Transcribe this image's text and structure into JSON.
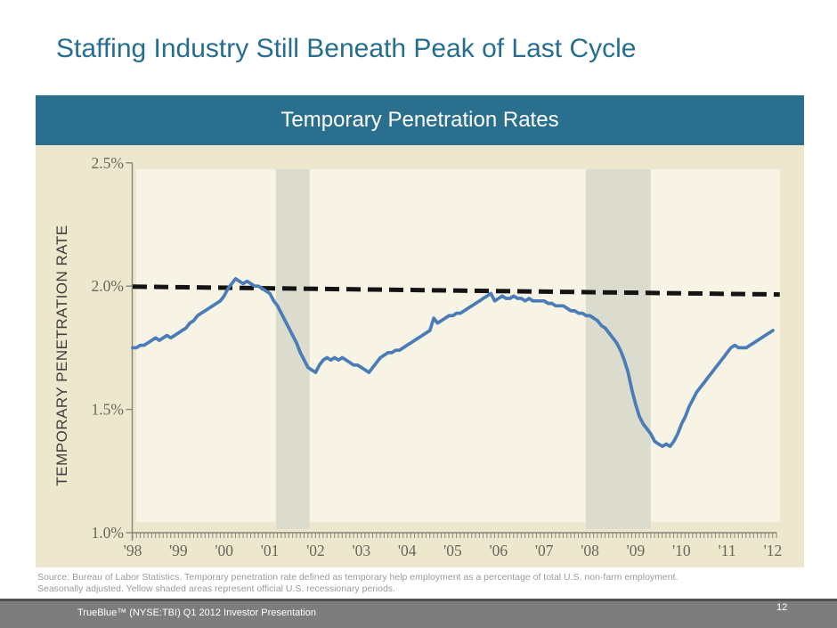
{
  "slide": {
    "title": "Staffing Industry Still Beneath Peak of Last Cycle",
    "page_number": "12"
  },
  "footer": {
    "label": "TrueBlue™ (NYSE:TBI) Q1 2012 Investor Presentation"
  },
  "source_note": {
    "line1": "Source: Bureau of Labor Statistics. Temporary penetration rate defined as temporary help employment as a percentage of total  U.S. non-farm employment.",
    "line2": "Seasonally adjusted. Yellow shaded areas represent official U.S. recessionary periods."
  },
  "colors": {
    "title_teal": "#256e90",
    "header_bar": "#2a6f8e",
    "panel_cream": "#ece7cd",
    "plot_cream": "#f7f4e5",
    "recession_band": "#dcdcce",
    "axis_gray": "#85857a",
    "tick_label": "#67675c",
    "line_blue": "#4a7cb8",
    "dashed_black": "#141414",
    "footer_gray": "#7d7d7d"
  },
  "chart_data": {
    "type": "line",
    "title": "Temporary Penetration Rates",
    "ylabel": "TEMPORARY PENETRATION RATE",
    "xlabel": "",
    "grid": false,
    "legend": false,
    "ylim": [
      1.0,
      2.5
    ],
    "xlim": [
      1998.0,
      2012.17
    ],
    "y_ticks": [
      1.0,
      1.5,
      2.0,
      2.5
    ],
    "y_tick_labels": [
      "1.0%",
      "1.5%",
      "2.0%",
      "2.5%"
    ],
    "x_ticks": [
      1998,
      1999,
      2000,
      2001,
      2002,
      2003,
      2004,
      2005,
      2006,
      2007,
      2008,
      2009,
      2010,
      2011,
      2012
    ],
    "x_tick_labels": [
      "'98",
      "'99",
      "'00",
      "'01",
      "'02",
      "'03",
      "'04",
      "'05",
      "'06",
      "'07",
      "'08",
      "'09",
      "'10",
      "'11",
      "'12"
    ],
    "minor_tick_interval_years": 0.0833,
    "recession_bands": [
      {
        "from": 2001.13,
        "to": 2001.87
      },
      {
        "from": 2007.91,
        "to": 2009.33
      }
    ],
    "peak_reference_line": {
      "style": "dashed",
      "from": {
        "x": 1998.0,
        "y": 1.998
      },
      "to": {
        "x": 2012.15,
        "y": 1.966
      }
    },
    "series": [
      {
        "name": "Temporary penetration rate (% of U.S. non-farm employment)",
        "frequency": "monthly",
        "start": "1998-01",
        "end": "2012-01",
        "values": [
          1.75,
          1.75,
          1.76,
          1.76,
          1.77,
          1.78,
          1.79,
          1.78,
          1.79,
          1.8,
          1.79,
          1.8,
          1.81,
          1.82,
          1.83,
          1.85,
          1.86,
          1.88,
          1.89,
          1.9,
          1.91,
          1.92,
          1.93,
          1.94,
          1.96,
          1.99,
          2.01,
          2.03,
          2.02,
          2.01,
          2.02,
          2.01,
          2.0,
          2.0,
          1.99,
          1.98,
          1.97,
          1.94,
          1.92,
          1.89,
          1.86,
          1.83,
          1.8,
          1.77,
          1.73,
          1.7,
          1.67,
          1.66,
          1.65,
          1.68,
          1.7,
          1.71,
          1.7,
          1.71,
          1.7,
          1.71,
          1.7,
          1.69,
          1.68,
          1.68,
          1.67,
          1.66,
          1.65,
          1.67,
          1.69,
          1.71,
          1.72,
          1.73,
          1.73,
          1.74,
          1.74,
          1.75,
          1.76,
          1.77,
          1.78,
          1.79,
          1.8,
          1.81,
          1.82,
          1.87,
          1.85,
          1.86,
          1.87,
          1.88,
          1.88,
          1.89,
          1.89,
          1.9,
          1.91,
          1.92,
          1.93,
          1.94,
          1.95,
          1.96,
          1.97,
          1.94,
          1.95,
          1.96,
          1.95,
          1.95,
          1.96,
          1.95,
          1.95,
          1.94,
          1.95,
          1.94,
          1.94,
          1.94,
          1.94,
          1.93,
          1.93,
          1.92,
          1.92,
          1.92,
          1.91,
          1.9,
          1.9,
          1.89,
          1.89,
          1.88,
          1.88,
          1.87,
          1.86,
          1.84,
          1.83,
          1.81,
          1.79,
          1.77,
          1.74,
          1.7,
          1.65,
          1.58,
          1.52,
          1.47,
          1.44,
          1.42,
          1.4,
          1.37,
          1.36,
          1.35,
          1.36,
          1.35,
          1.37,
          1.4,
          1.44,
          1.47,
          1.51,
          1.54,
          1.57,
          1.59,
          1.61,
          1.63,
          1.65,
          1.67,
          1.69,
          1.71,
          1.73,
          1.75,
          1.76,
          1.75,
          1.75,
          1.75,
          1.76,
          1.77,
          1.78,
          1.79,
          1.8,
          1.81,
          1.82
        ]
      }
    ]
  }
}
